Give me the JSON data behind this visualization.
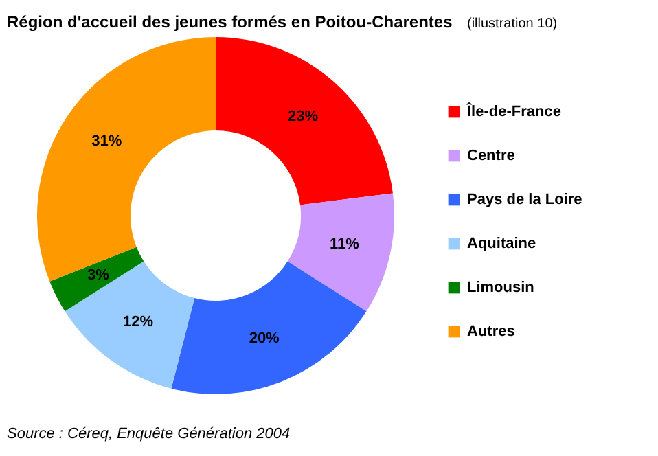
{
  "chart_data": {
    "type": "donut",
    "title": "Région d'accueil des jeunes formés en Poitou-Charentes",
    "subtitle": "(illustration 10)",
    "categories": [
      "Île-de-France",
      "Centre",
      "Pays de la Loire",
      "Aquitaine",
      "Limousin",
      "Autres"
    ],
    "values": [
      23,
      11,
      20,
      12,
      3,
      31
    ],
    "colors": [
      "#ff0000",
      "#cc99ff",
      "#3366ff",
      "#99ccff",
      "#008000",
      "#ff9900"
    ],
    "value_labels": [
      "23%",
      "11%",
      "20%",
      "12%",
      "3%",
      "31%"
    ],
    "legend": "right",
    "annotations": [
      "Source : Céreq, Enquête Génération 2004"
    ]
  }
}
